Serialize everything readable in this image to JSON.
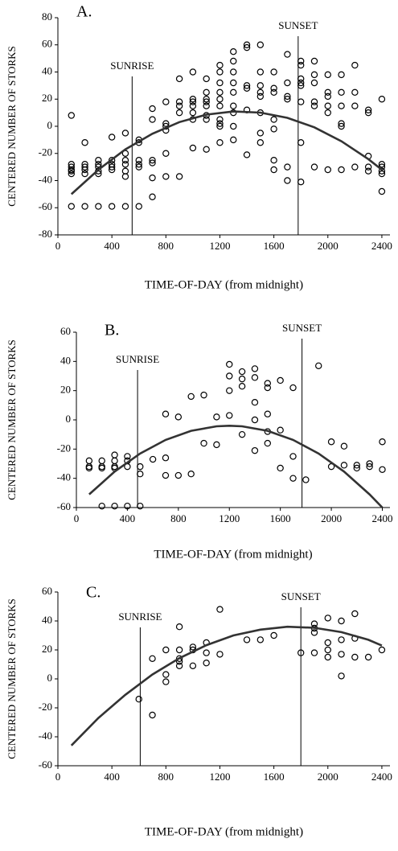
{
  "chart_data": [
    {
      "type": "scatter",
      "title": "A.",
      "x_label": "TIME-OF-DAY (from midnight)",
      "y_label": "CENTERED NUMBER OF STORKS",
      "xlim": [
        0,
        2460
      ],
      "ylim": [
        -80,
        80
      ],
      "xticks": [
        0,
        400,
        800,
        1200,
        1600,
        2000,
        2400
      ],
      "yticks": [
        -80,
        -60,
        -40,
        -20,
        0,
        20,
        40,
        60,
        80
      ],
      "annotations": [
        {
          "label": "SUNRISE",
          "x": 550
        },
        {
          "label": "SUNSET",
          "x": 1780
        }
      ],
      "series": [
        {
          "type": "scatter",
          "color": "#000000",
          "x": [
            100,
            100,
            100,
            100,
            100,
            100,
            100,
            200,
            200,
            200,
            200,
            200,
            200,
            300,
            300,
            300,
            300,
            300,
            300,
            400,
            400,
            400,
            400,
            400,
            400,
            500,
            500,
            500,
            500,
            500,
            500,
            500,
            600,
            600,
            600,
            600,
            600,
            600,
            700,
            700,
            700,
            700,
            700,
            700,
            800,
            800,
            800,
            800,
            800,
            800,
            900,
            900,
            900,
            900,
            900,
            1000,
            1000,
            1000,
            1000,
            1000,
            1000,
            1000,
            1100,
            1100,
            1100,
            1100,
            1100,
            1100,
            1100,
            1100,
            1200,
            1200,
            1200,
            1200,
            1200,
            1200,
            1200,
            1200,
            1200,
            1200,
            1300,
            1300,
            1300,
            1300,
            1300,
            1300,
            1300,
            1300,
            1300,
            1400,
            1400,
            1400,
            1400,
            1400,
            1400,
            1500,
            1500,
            1500,
            1500,
            1500,
            1500,
            1500,
            1500,
            1600,
            1600,
            1600,
            1600,
            1600,
            1600,
            1600,
            1700,
            1700,
            1700,
            1700,
            1700,
            1700,
            1800,
            1800,
            1800,
            1800,
            1800,
            1800,
            1800,
            1800,
            1900,
            1900,
            1900,
            1900,
            1900,
            1900,
            2000,
            2000,
            2000,
            2000,
            2000,
            2000,
            2100,
            2100,
            2100,
            2100,
            2100,
            2100,
            2200,
            2200,
            2200,
            2200,
            2300,
            2300,
            2300,
            2300,
            2300,
            2400,
            2400,
            2400,
            2400,
            2400,
            2400
          ],
          "values": [
            8,
            -28,
            -30,
            -32,
            -33,
            -35,
            -59,
            -12,
            -28,
            -30,
            -32,
            -35,
            -59,
            -25,
            -28,
            -30,
            -33,
            -35,
            -59,
            -8,
            -25,
            -28,
            -30,
            -32,
            -59,
            -5,
            -20,
            -25,
            -28,
            -33,
            -37,
            -59,
            -10,
            -12,
            -25,
            -28,
            -30,
            -59,
            13,
            5,
            -25,
            -27,
            -38,
            -52,
            18,
            2,
            0,
            -3,
            -20,
            -37,
            35,
            18,
            15,
            10,
            -37,
            40,
            20,
            18,
            15,
            10,
            5,
            -16,
            35,
            25,
            20,
            18,
            15,
            8,
            5,
            -17,
            45,
            40,
            32,
            25,
            20,
            15,
            5,
            2,
            0,
            -12,
            55,
            48,
            40,
            32,
            25,
            15,
            10,
            0,
            -10,
            60,
            58,
            30,
            28,
            12,
            -21,
            60,
            40,
            30,
            25,
            22,
            10,
            -5,
            -12,
            40,
            28,
            25,
            5,
            -2,
            -25,
            -32,
            53,
            32,
            22,
            20,
            -30,
            -40,
            48,
            45,
            35,
            32,
            30,
            18,
            -12,
            -41,
            48,
            38,
            32,
            18,
            15,
            -30,
            38,
            25,
            22,
            15,
            10,
            -32,
            38,
            25,
            15,
            2,
            0,
            -32,
            45,
            25,
            15,
            -30,
            12,
            10,
            -22,
            -30,
            -33,
            20,
            -28,
            -30,
            -33,
            -35,
            -48
          ]
        },
        {
          "type": "line",
          "color": "#333333",
          "x": [
            100,
            300,
            500,
            700,
            900,
            1100,
            1300,
            1500,
            1700,
            1900,
            2100,
            2300,
            2400
          ],
          "values": [
            -50,
            -32,
            -17,
            -5.5,
            3.1,
            8.6,
            10.9,
            10.1,
            6.2,
            -0.8,
            -11,
            -24.2,
            -32
          ]
        }
      ]
    },
    {
      "type": "scatter",
      "title": "B.",
      "x_label": "TIME-OF-DAY (from midnight)",
      "y_label": "CENTERED NUMBER OF STORKS",
      "xlim": [
        0,
        2460
      ],
      "ylim": [
        -60,
        60
      ],
      "xticks": [
        0,
        400,
        800,
        1200,
        1600,
        2000,
        2400
      ],
      "yticks": [
        -60,
        -40,
        -20,
        0,
        20,
        40,
        60
      ],
      "annotations": [
        {
          "label": "SUNRISE",
          "x": 480
        },
        {
          "label": "SUNSET",
          "x": 1770
        }
      ],
      "series": [
        {
          "type": "scatter",
          "color": "#000000",
          "x": [
            100,
            100,
            100,
            200,
            200,
            200,
            200,
            300,
            300,
            300,
            300,
            300,
            400,
            400,
            400,
            400,
            500,
            500,
            500,
            600,
            700,
            700,
            700,
            800,
            800,
            900,
            900,
            1000,
            1000,
            1100,
            1100,
            1200,
            1200,
            1200,
            1200,
            1300,
            1300,
            1300,
            1300,
            1400,
            1400,
            1400,
            1400,
            1400,
            1500,
            1500,
            1500,
            1500,
            1500,
            1600,
            1600,
            1600,
            1700,
            1700,
            1700,
            1800,
            1900,
            2000,
            2000,
            2100,
            2100,
            2200,
            2200,
            2300,
            2300,
            2400,
            2400
          ],
          "values": [
            -28,
            -32,
            -33,
            -28,
            -32,
            -33,
            -59,
            -24,
            -28,
            -32,
            -33,
            -59,
            -25,
            -28,
            -32,
            -59,
            -32,
            -37,
            -59,
            -27,
            4,
            -26,
            -38,
            2,
            -38,
            16,
            -37,
            17,
            -16,
            2,
            -17,
            38,
            30,
            20,
            3,
            33,
            28,
            23,
            -10,
            35,
            29,
            12,
            0,
            -21,
            25,
            22,
            4,
            -8,
            -16,
            27,
            -7,
            -33,
            22,
            -25,
            -40,
            -41,
            37,
            -15,
            -32,
            -18,
            -31,
            -31,
            -33,
            -30,
            -32,
            -15,
            -34
          ]
        },
        {
          "type": "line",
          "color": "#333333",
          "x": [
            100,
            300,
            500,
            700,
            900,
            1100,
            1200,
            1300,
            1500,
            1700,
            1900,
            2100,
            2300,
            2400
          ],
          "values": [
            -51,
            -35.4,
            -23,
            -13.7,
            -7.5,
            -4.4,
            -4,
            -4.4,
            -7.5,
            -13.7,
            -23,
            -35.4,
            -51,
            -60
          ]
        }
      ]
    },
    {
      "type": "scatter",
      "title": "C.",
      "x_label": "TIME-OF-DAY (from midnight)",
      "y_label": "CENTERED NUMBER OF STORKS",
      "xlim": [
        0,
        2460
      ],
      "ylim": [
        -60,
        60
      ],
      "xticks": [
        0,
        400,
        800,
        1200,
        1600,
        2000,
        2400
      ],
      "yticks": [
        -60,
        -40,
        -20,
        0,
        20,
        40,
        60
      ],
      "annotations": [
        {
          "label": "SUNRISE",
          "x": 610
        },
        {
          "label": "SUNSET",
          "x": 1800
        }
      ],
      "series": [
        {
          "type": "scatter",
          "color": "#000000",
          "x": [
            600,
            700,
            700,
            800,
            800,
            800,
            900,
            900,
            900,
            900,
            900,
            1000,
            1000,
            1000,
            1100,
            1100,
            1100,
            1200,
            1200,
            1400,
            1500,
            1600,
            1800,
            1900,
            1900,
            1900,
            1900,
            2000,
            2000,
            2000,
            2000,
            2100,
            2100,
            2100,
            2100,
            2200,
            2200,
            2200,
            2300,
            2400
          ],
          "values": [
            -14,
            14,
            -25,
            20,
            3,
            -2,
            36,
            20,
            14,
            12,
            9,
            22,
            20,
            9,
            25,
            18,
            11,
            48,
            17,
            27,
            27,
            30,
            18,
            38,
            35,
            32,
            18,
            42,
            25,
            20,
            15,
            40,
            27,
            17,
            2,
            45,
            28,
            15,
            15,
            20
          ]
        },
        {
          "type": "line",
          "color": "#333333",
          "x": [
            100,
            300,
            500,
            700,
            900,
            1100,
            1300,
            1500,
            1700,
            1900,
            2100,
            2300,
            2400
          ],
          "values": [
            -46,
            -27,
            -11,
            3,
            14.3,
            23.3,
            30,
            34,
            36,
            35.3,
            32.3,
            27,
            23
          ]
        }
      ]
    }
  ]
}
